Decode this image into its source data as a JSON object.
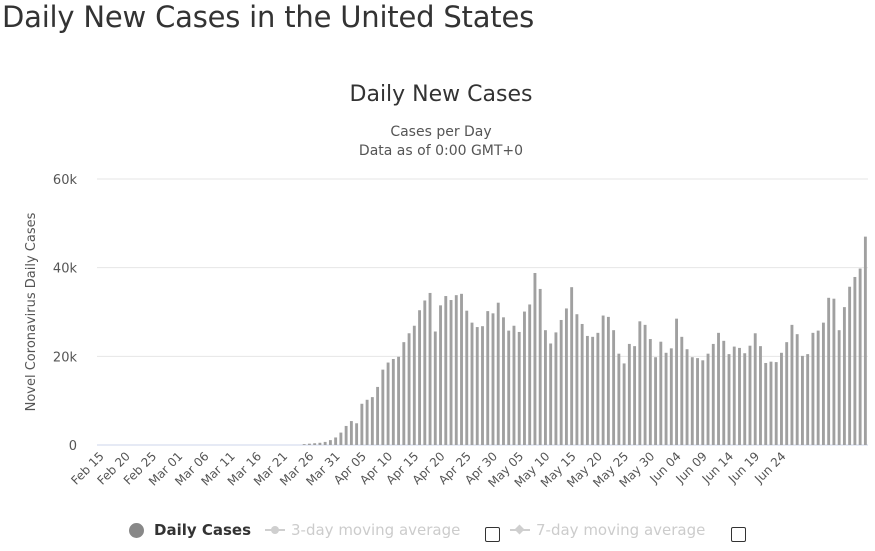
{
  "page": {
    "heading": "Daily New Cases in the United States"
  },
  "chart_data": {
    "type": "bar",
    "title": "Daily New Cases",
    "subtitle_lines": [
      "Cases per Day",
      "Data as of 0:00 GMT+0"
    ],
    "ylabel": "Novel Coronavirus Daily Cases",
    "xlabel": "",
    "ylim": [
      0,
      60000
    ],
    "yticks": [
      0,
      20000,
      40000,
      60000
    ],
    "ytick_labels": [
      "0",
      "20k",
      "40k",
      "60k"
    ],
    "grid": true,
    "x_tick_labels": [
      "Feb 15",
      "Feb 20",
      "Feb 25",
      "Mar 01",
      "Mar 06",
      "Mar 11",
      "Mar 16",
      "Mar 21",
      "Mar 26",
      "Mar 31",
      "Apr 05",
      "Apr 10",
      "Apr 15",
      "Apr 20",
      "Apr 25",
      "Apr 30",
      "May 05",
      "May 10",
      "May 15",
      "May 20",
      "May 25",
      "May 30",
      "Jun 04",
      "Jun 09",
      "Jun 14",
      "Jun 19",
      "Jun 24"
    ],
    "x_tick_every": 5,
    "series": [
      {
        "name": "Daily Cases",
        "color": "#a0a0a0",
        "values": [
          0,
          0,
          0,
          0,
          0,
          0,
          0,
          0,
          0,
          0,
          0,
          0,
          0,
          0,
          0,
          0,
          0,
          0,
          0,
          0,
          0,
          0,
          0,
          0,
          0,
          0,
          0,
          0,
          0,
          0,
          0,
          0,
          0,
          0,
          0,
          0,
          0,
          0,
          0,
          200,
          300,
          400,
          500,
          700,
          1100,
          1700,
          2800,
          4300,
          5400,
          4900,
          9300,
          10200,
          10800,
          13100,
          17000,
          18600,
          19400,
          19900,
          23200,
          25200,
          26900,
          30400,
          32600,
          34300,
          25600,
          31500,
          33600,
          32700,
          33800,
          34100,
          30300,
          27600,
          26600,
          26800,
          30200,
          29700,
          32100,
          28800,
          25800,
          26900,
          25500,
          30100,
          31700,
          38800,
          35200,
          25900,
          22900,
          25400,
          28200,
          30800,
          35600,
          29500,
          27300,
          24600,
          24400,
          25300,
          29200,
          28900,
          25900,
          20600,
          18400,
          22800,
          22300,
          27900,
          27100,
          23900,
          19800,
          23300,
          20800,
          21800,
          28500,
          24400,
          21600,
          19800,
          19600,
          19100,
          20600,
          22800,
          25300,
          23500,
          20500,
          22200,
          21900,
          20700,
          22400,
          25200,
          22300,
          18500,
          18800,
          18700,
          20800,
          23200,
          27100,
          25000,
          20100,
          20500,
          25300,
          25800,
          27600,
          33200,
          33000,
          25900,
          31100,
          35700,
          37900,
          39800,
          47000
        ]
      },
      {
        "name": "3-day moving average",
        "enabled": false
      },
      {
        "name": "7-day moving average",
        "enabled": false
      }
    ],
    "legend": "bottom-center"
  },
  "colors": {
    "bar": "#a0a0a0",
    "grid": "#e6e6e6",
    "axis": "#ccd6eb",
    "text": "#333333",
    "legend_disabled": "#cccccc"
  }
}
